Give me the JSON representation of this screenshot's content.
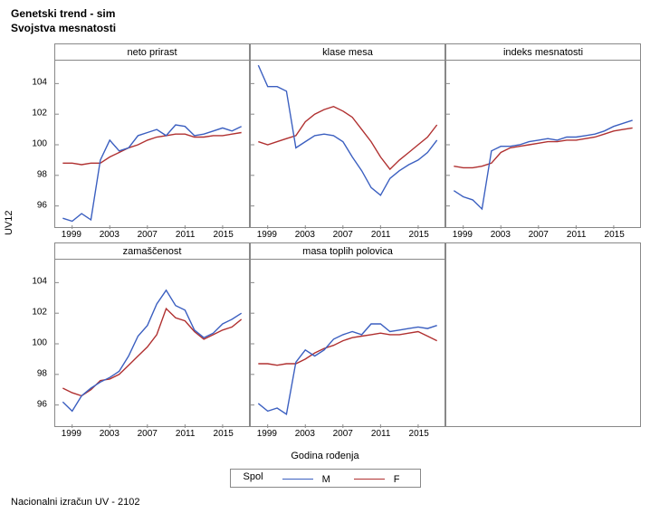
{
  "title_line1": "Genetski trend - sim",
  "title_line2": "Svojstva mesnatosti",
  "y_label": "UV12",
  "x_label": "Godina rođenja",
  "footer": "Nacionalni izračun UV - 2102",
  "legend_title": "Spol",
  "legend_items": [
    {
      "label": "M",
      "color": "#3b5fc0"
    },
    {
      "label": "F",
      "color": "#b03030"
    }
  ],
  "colors": {
    "M": "#3b5fc0",
    "F": "#b03030",
    "panel_border": "#888888",
    "background": "#ffffff",
    "tick": "#888888"
  },
  "years": [
    1998,
    1999,
    2000,
    2001,
    2002,
    2003,
    2004,
    2005,
    2006,
    2007,
    2008,
    2009,
    2010,
    2011,
    2012,
    2013,
    2014,
    2015,
    2016,
    2017
  ],
  "x_ticks": [
    1999,
    2003,
    2007,
    2011,
    2015
  ],
  "y_ticks": [
    96,
    98,
    100,
    102,
    104
  ],
  "ylim": [
    94.5,
    105.5
  ],
  "xlim": [
    1997.2,
    2017.8
  ],
  "line_width": 1.4,
  "font_size_axis": 10,
  "font_size_label": 11,
  "font_size_title": 12,
  "panels": [
    [
      {
        "title": "neto prirast",
        "series": {
          "M": [
            95.2,
            95.0,
            95.5,
            95.1,
            99.0,
            100.3,
            99.6,
            99.8,
            100.6,
            100.8,
            101.0,
            100.6,
            101.3,
            101.2,
            100.6,
            100.7,
            100.9,
            101.1,
            100.9,
            101.2
          ],
          "F": [
            98.8,
            98.8,
            98.7,
            98.8,
            98.8,
            99.2,
            99.5,
            99.8,
            100.0,
            100.3,
            100.5,
            100.6,
            100.7,
            100.7,
            100.5,
            100.5,
            100.6,
            100.6,
            100.7,
            100.8
          ]
        }
      },
      {
        "title": "klase mesa",
        "series": {
          "M": [
            105.2,
            103.8,
            103.8,
            103.5,
            99.8,
            100.2,
            100.6,
            100.7,
            100.6,
            100.2,
            99.2,
            98.3,
            97.2,
            96.7,
            97.8,
            98.3,
            98.7,
            99.0,
            99.5,
            100.3
          ],
          "F": [
            100.2,
            100.0,
            100.2,
            100.4,
            100.6,
            101.5,
            102.0,
            102.3,
            102.5,
            102.2,
            101.8,
            101.0,
            100.2,
            99.2,
            98.4,
            99.0,
            99.5,
            100.0,
            100.5,
            101.3
          ]
        }
      },
      {
        "title": "indeks mesnatosti",
        "series": {
          "M": [
            97.0,
            96.6,
            96.4,
            95.8,
            99.6,
            99.9,
            99.9,
            100.0,
            100.2,
            100.3,
            100.4,
            100.3,
            100.5,
            100.5,
            100.6,
            100.7,
            100.9,
            101.2,
            101.4,
            101.6
          ],
          "F": [
            98.6,
            98.5,
            98.5,
            98.6,
            98.8,
            99.5,
            99.8,
            99.9,
            100.0,
            100.1,
            100.2,
            100.2,
            100.3,
            100.3,
            100.4,
            100.5,
            100.7,
            100.9,
            101.0,
            101.1
          ]
        }
      }
    ],
    [
      {
        "title": "zamaščenost",
        "series": {
          "M": [
            96.2,
            95.6,
            96.6,
            97.1,
            97.5,
            97.8,
            98.2,
            99.2,
            100.5,
            101.2,
            102.6,
            103.5,
            102.5,
            102.2,
            100.9,
            100.4,
            100.7,
            101.3,
            101.6,
            102.0
          ],
          "F": [
            97.1,
            96.8,
            96.6,
            97.0,
            97.6,
            97.7,
            98.0,
            98.6,
            99.2,
            99.8,
            100.6,
            102.3,
            101.7,
            101.5,
            100.8,
            100.3,
            100.6,
            100.9,
            101.1,
            101.6
          ]
        }
      },
      {
        "title": "masa toplih polovica",
        "series": {
          "M": [
            96.1,
            95.6,
            95.8,
            95.4,
            98.8,
            99.6,
            99.2,
            99.6,
            100.3,
            100.6,
            100.8,
            100.6,
            101.3,
            101.3,
            100.8,
            100.9,
            101.0,
            101.1,
            101.0,
            101.2
          ],
          "F": [
            98.7,
            98.7,
            98.6,
            98.7,
            98.7,
            99.0,
            99.4,
            99.7,
            99.9,
            100.2,
            100.4,
            100.5,
            100.6,
            100.7,
            100.6,
            100.6,
            100.7,
            100.8,
            100.5,
            100.2
          ]
        }
      },
      null
    ]
  ]
}
